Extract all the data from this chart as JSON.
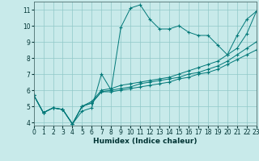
{
  "xlabel": "Humidex (Indice chaleur)",
  "background_color": "#c8eaea",
  "grid_color": "#90c8c8",
  "line_color": "#007878",
  "xlim": [
    0,
    23
  ],
  "ylim": [
    3.8,
    11.5
  ],
  "xticks": [
    0,
    1,
    2,
    3,
    4,
    5,
    6,
    7,
    8,
    9,
    10,
    11,
    12,
    13,
    14,
    15,
    16,
    17,
    18,
    19,
    20,
    21,
    22,
    23
  ],
  "yticks": [
    4,
    5,
    6,
    7,
    8,
    9,
    10,
    11
  ],
  "series": [
    [
      5.7,
      4.6,
      4.9,
      4.8,
      3.9,
      4.7,
      4.9,
      7.0,
      6.0,
      9.9,
      11.1,
      11.3,
      10.4,
      9.8,
      9.8,
      10.0,
      9.6,
      9.4,
      9.4,
      8.8,
      8.2,
      9.4,
      10.4,
      10.9
    ],
    [
      5.7,
      4.6,
      4.9,
      4.8,
      3.9,
      5.0,
      5.3,
      6.0,
      6.1,
      6.3,
      6.4,
      6.5,
      6.6,
      6.7,
      6.8,
      7.0,
      7.2,
      7.4,
      7.6,
      7.8,
      8.2,
      8.6,
      9.5,
      10.9
    ],
    [
      5.7,
      4.6,
      4.9,
      4.8,
      3.9,
      5.0,
      5.2,
      5.9,
      6.0,
      6.1,
      6.2,
      6.4,
      6.5,
      6.6,
      6.7,
      6.8,
      7.0,
      7.1,
      7.3,
      7.5,
      7.8,
      8.2,
      8.6,
      9.0
    ],
    [
      5.7,
      4.6,
      4.9,
      4.8,
      3.9,
      5.0,
      5.2,
      5.9,
      5.9,
      6.0,
      6.1,
      6.2,
      6.3,
      6.4,
      6.5,
      6.7,
      6.8,
      7.0,
      7.1,
      7.3,
      7.6,
      7.9,
      8.2,
      8.5
    ]
  ]
}
